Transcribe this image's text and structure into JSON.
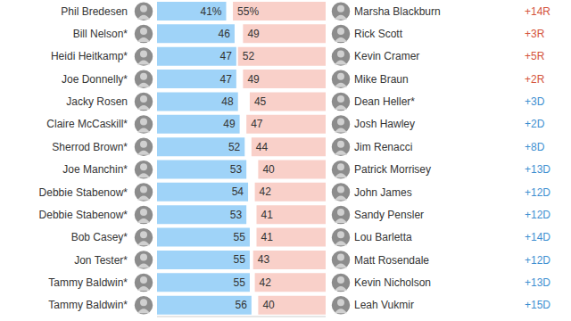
{
  "chart_data": {
    "type": "bar",
    "orientation": "horizontal",
    "data_labels": true,
    "tick_labels": false,
    "xlim": [
      0,
      100
    ],
    "categories": [
      "Phil Bredesen",
      "Bill Nelson*",
      "Heidi Heitkamp*",
      "Joe Donnelly*",
      "Jacky Rosen",
      "Claire McCaskill*",
      "Sherrod Brown*",
      "Joe Manchin*",
      "Debbie Stabenow*",
      "Debbie Stabenow*",
      "Bob Casey*",
      "Jon Tester*",
      "Tammy Baldwin*",
      "Tammy Baldwin*"
    ],
    "opponents": [
      "Marsha Blackburn",
      "Rick Scott",
      "Kevin Cramer",
      "Mike Braun",
      "Dean Heller*",
      "Josh Hawley",
      "Jim Renacci",
      "Patrick Morrisey",
      "John James",
      "Sandy Pensler",
      "Lou Barletta",
      "Matt Rosendale",
      "Kevin Nicholson",
      "Leah Vukmir"
    ],
    "margins": [
      "+14R",
      "+3R",
      "+5R",
      "+2R",
      "+3D",
      "+2D",
      "+8D",
      "+13D",
      "+12D",
      "+12D",
      "+14D",
      "+12D",
      "+13D",
      "+15D"
    ],
    "series": [
      {
        "color": "#9fd3f8",
        "values": [
          41,
          46,
          47,
          47,
          48,
          49,
          52,
          53,
          54,
          53,
          55,
          55,
          55,
          56
        ],
        "value_labels": [
          "41%",
          "46",
          "47",
          "47",
          "48",
          "49",
          "52",
          "53",
          "54",
          "53",
          "55",
          "55",
          "55",
          "56"
        ]
      },
      {
        "color": "#f9d0c9",
        "values": [
          55,
          49,
          52,
          49,
          45,
          47,
          44,
          40,
          42,
          41,
          41,
          43,
          42,
          40
        ],
        "value_labels": [
          "55%",
          "49",
          "52",
          "49",
          "45",
          "47",
          "44",
          "40",
          "42",
          "41",
          "41",
          "43",
          "42",
          "40"
        ]
      }
    ]
  }
}
